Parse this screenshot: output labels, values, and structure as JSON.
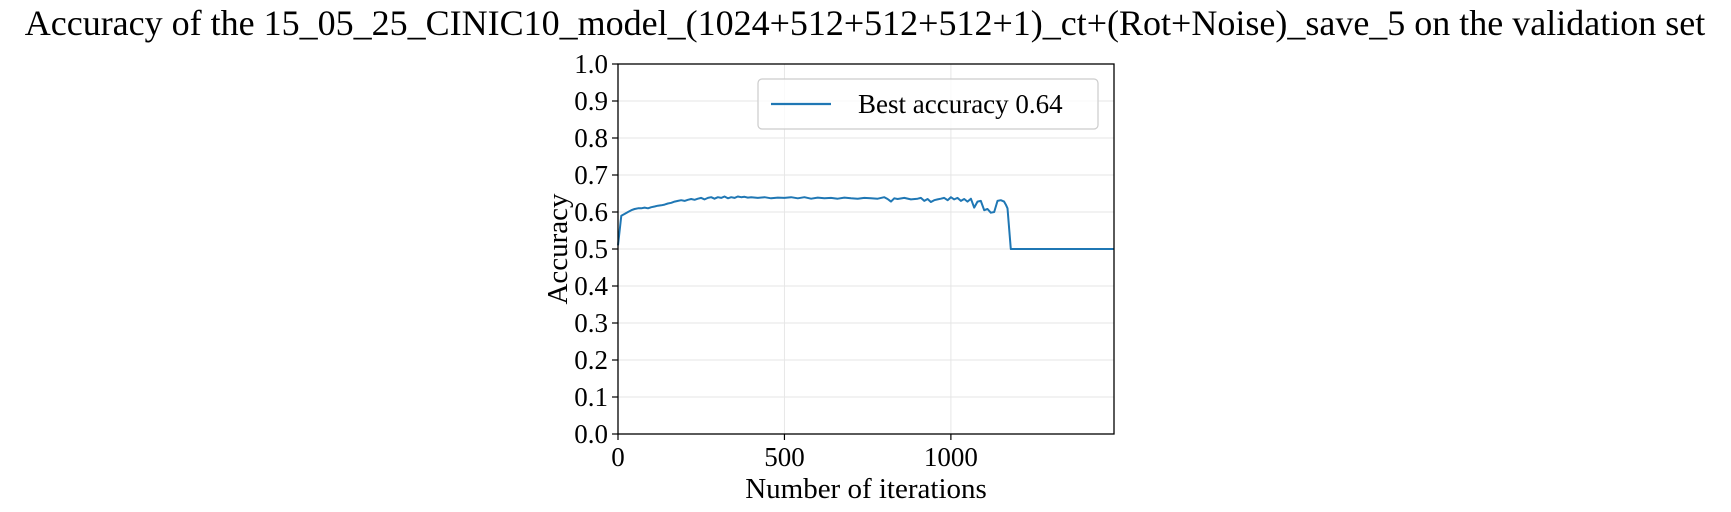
{
  "chart_data": {
    "type": "line",
    "title": "Accuracy of the 15_05_25_CINIC10_model_(1024+512+512+512+1)_ct+(Rot+Noise)_save_5 on the validation set",
    "xlabel": "Number of iterations",
    "ylabel": "Accuracy",
    "xlim": [
      0,
      1490
    ],
    "ylim": [
      0,
      1.0
    ],
    "xticks": [
      0,
      500,
      1000
    ],
    "xtick_labels": [
      "0",
      "500",
      "1000"
    ],
    "yticks": [
      0.0,
      0.1,
      0.2,
      0.3,
      0.4,
      0.5,
      0.6,
      0.7,
      0.8,
      0.9,
      1.0
    ],
    "ytick_labels": [
      "0.0",
      "0.1",
      "0.2",
      "0.3",
      "0.4",
      "0.5",
      "0.6",
      "0.7",
      "0.8",
      "0.9",
      "1.0"
    ],
    "grid": true,
    "legend_position": "upper right",
    "colors": {
      "series": "#1f77b4",
      "grid": "#e6e6e6",
      "axis": "#000000"
    },
    "series": [
      {
        "name": "Best accuracy 0.64",
        "x": [
          0,
          10,
          20,
          30,
          40,
          50,
          60,
          70,
          80,
          90,
          100,
          110,
          120,
          130,
          140,
          150,
          160,
          170,
          180,
          190,
          200,
          210,
          220,
          230,
          240,
          250,
          260,
          270,
          280,
          290,
          300,
          310,
          320,
          330,
          340,
          350,
          360,
          370,
          380,
          390,
          400,
          420,
          440,
          460,
          480,
          500,
          520,
          540,
          560,
          580,
          600,
          620,
          640,
          660,
          680,
          700,
          720,
          740,
          760,
          780,
          800,
          810,
          820,
          830,
          840,
          860,
          880,
          900,
          910,
          920,
          930,
          940,
          950,
          960,
          970,
          980,
          990,
          1000,
          1010,
          1020,
          1030,
          1040,
          1050,
          1060,
          1070,
          1080,
          1090,
          1100,
          1110,
          1120,
          1130,
          1140,
          1150,
          1160,
          1165,
          1170,
          1180,
          1200,
          1300,
          1400,
          1490
        ],
        "y": [
          0.51,
          0.59,
          0.595,
          0.6,
          0.605,
          0.608,
          0.61,
          0.61,
          0.612,
          0.61,
          0.613,
          0.615,
          0.617,
          0.618,
          0.62,
          0.623,
          0.625,
          0.628,
          0.63,
          0.632,
          0.63,
          0.633,
          0.635,
          0.633,
          0.636,
          0.638,
          0.634,
          0.638,
          0.64,
          0.636,
          0.64,
          0.638,
          0.642,
          0.637,
          0.64,
          0.638,
          0.642,
          0.64,
          0.641,
          0.639,
          0.64,
          0.638,
          0.64,
          0.637,
          0.639,
          0.638,
          0.64,
          0.637,
          0.64,
          0.636,
          0.639,
          0.637,
          0.638,
          0.636,
          0.639,
          0.637,
          0.636,
          0.638,
          0.637,
          0.636,
          0.64,
          0.635,
          0.628,
          0.637,
          0.635,
          0.638,
          0.634,
          0.636,
          0.638,
          0.63,
          0.635,
          0.627,
          0.632,
          0.634,
          0.636,
          0.638,
          0.632,
          0.64,
          0.634,
          0.638,
          0.63,
          0.635,
          0.628,
          0.636,
          0.612,
          0.628,
          0.63,
          0.605,
          0.608,
          0.598,
          0.6,
          0.63,
          0.632,
          0.628,
          0.62,
          0.61,
          0.5,
          0.5,
          0.5,
          0.5,
          0.5
        ]
      }
    ]
  }
}
